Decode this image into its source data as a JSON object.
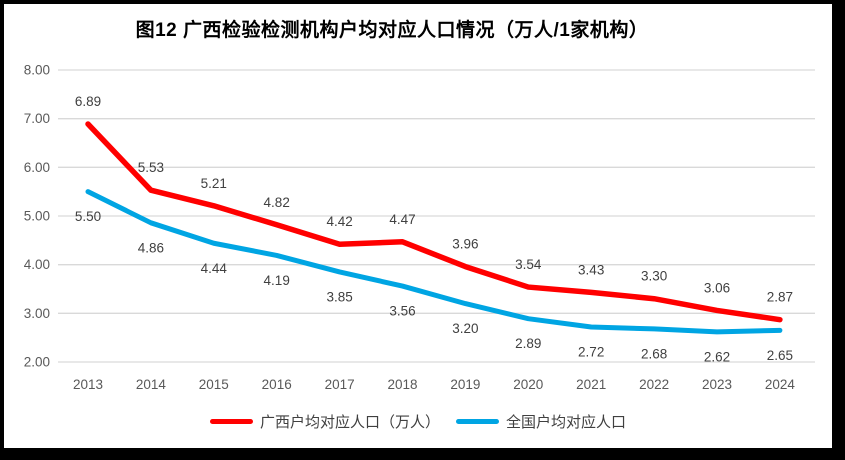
{
  "title": "图12 广西检验检测机构户均对应人口情况（万人/1家机构）",
  "chart_data": {
    "type": "line",
    "x": [
      "2013",
      "2014",
      "2015",
      "2016",
      "2017",
      "2018",
      "2019",
      "2020",
      "2021",
      "2022",
      "2023",
      "2024"
    ],
    "series": [
      {
        "name": "广西户均对应人口（万人）",
        "color": "#FF0000",
        "values": [
          6.89,
          5.53,
          5.21,
          4.82,
          4.42,
          4.47,
          3.96,
          3.54,
          3.43,
          3.3,
          3.06,
          2.87
        ],
        "label_position": "above"
      },
      {
        "name": "全国户均对应人口",
        "color": "#00A5E3",
        "values": [
          5.5,
          4.86,
          4.44,
          4.19,
          3.85,
          3.56,
          3.2,
          2.89,
          2.72,
          2.68,
          2.62,
          2.65
        ],
        "label_position": "below"
      }
    ],
    "ylim": [
      2,
      8
    ],
    "yticks": [
      {
        "value": 8,
        "label": "8.00"
      },
      {
        "value": 7,
        "label": "7.00"
      },
      {
        "value": 6,
        "label": "6.00"
      },
      {
        "value": 5,
        "label": "5.00"
      },
      {
        "value": 4,
        "label": "4.00"
      },
      {
        "value": 3,
        "label": "3.00"
      },
      {
        "value": 2,
        "label": "2.00"
      }
    ],
    "grid": true,
    "legend_position": "bottom",
    "colors": {
      "gridline": "#D9D9D9",
      "axis_text": "#595959",
      "label_text": "#404040",
      "frame": "#000000",
      "background": "#FFFFFF"
    }
  }
}
